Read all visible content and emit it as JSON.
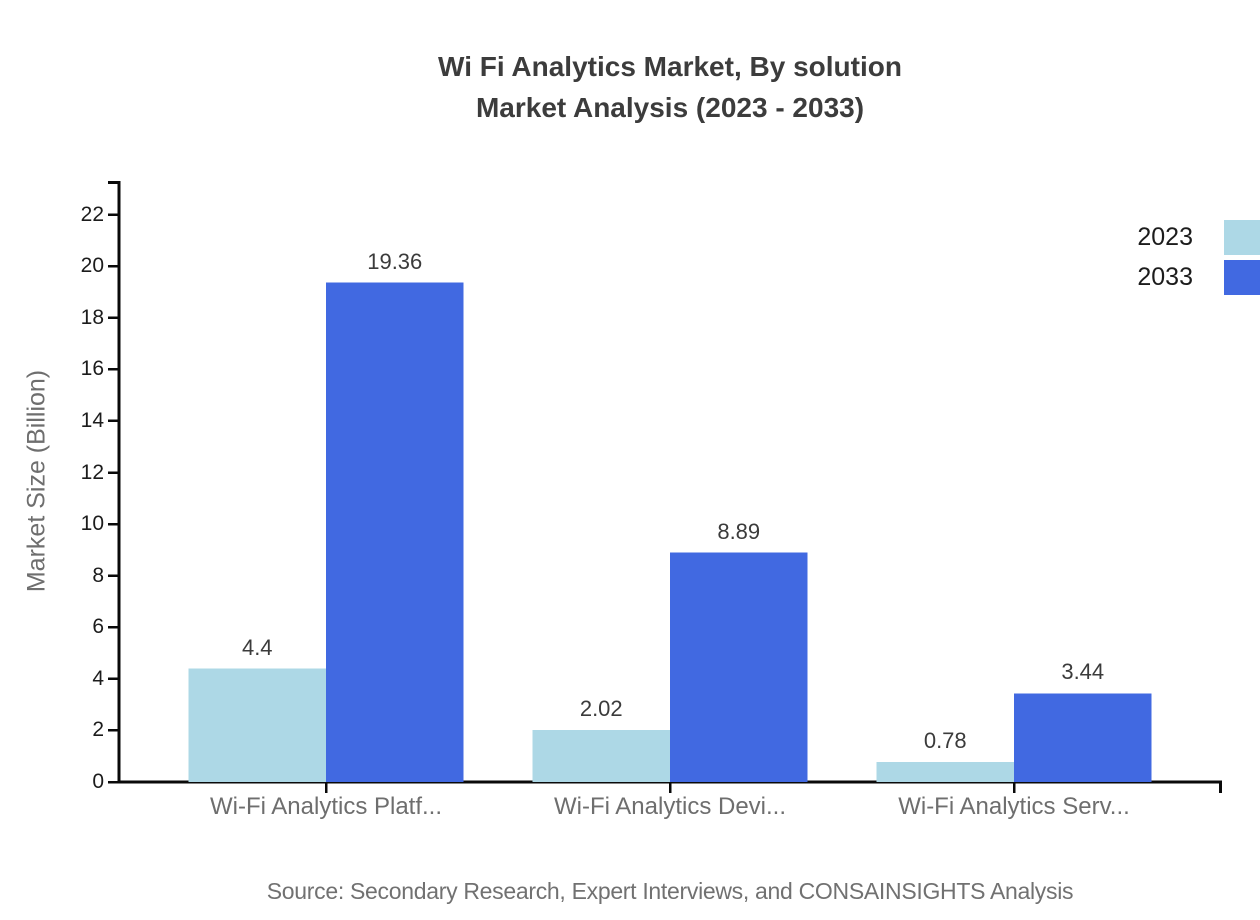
{
  "title": {
    "line1": "Wi Fi Analytics Market, By solution",
    "line2": "Market Analysis (2023 - 2033)"
  },
  "source": "Source: Secondary Research, Expert Interviews, and CONSAINSIGHTS Analysis",
  "legend": {
    "position": "top-right",
    "items": [
      {
        "label": "2023",
        "color": "#ADD8E6"
      },
      {
        "label": "2033",
        "color": "#4169E1"
      }
    ]
  },
  "chart_data": {
    "type": "bar",
    "title": "Wi Fi Analytics Market, By solution Market Analysis (2023 - 2033)",
    "categories": [
      "Wi-Fi Analytics Platf...",
      "Wi-Fi Analytics Devi...",
      "Wi-Fi Analytics Serv..."
    ],
    "series": [
      {
        "name": "2023",
        "color": "#ADD8E6",
        "values": [
          4.4,
          2.02,
          0.78
        ],
        "labels": [
          "4.4",
          "2.02",
          "0.78"
        ]
      },
      {
        "name": "2033",
        "color": "#4169E1",
        "values": [
          19.36,
          8.89,
          3.44
        ],
        "labels": [
          "19.36",
          "8.89",
          "3.44"
        ]
      }
    ],
    "xlabel": "",
    "ylabel": "Market Size (Billion)",
    "yticks": [
      0,
      2,
      4,
      6,
      8,
      10,
      12,
      14,
      16,
      18,
      20,
      22
    ],
    "ylim": [
      0,
      23.3
    ],
    "grid": false,
    "legend_position": "top-right",
    "axis_color": "#0a0a0a"
  }
}
